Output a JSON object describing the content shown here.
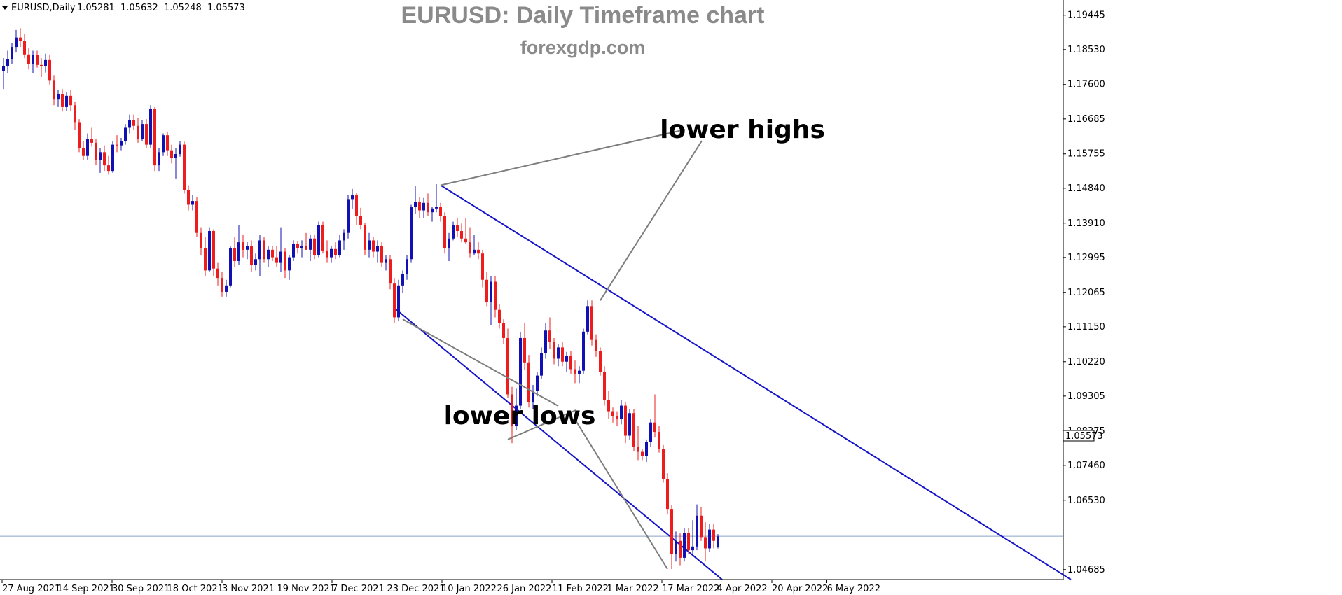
{
  "chart_data": {
    "type": "candlestick",
    "symbol_label": "EURUSD,Daily",
    "ohlc_header": [
      "1.05281",
      "1.05632",
      "1.05248",
      "1.05573"
    ],
    "title": "EURUSD: Daily Timeframe chart",
    "subtitle": "forexgdp.com",
    "y_ticks": [
      "1.19445",
      "1.18530",
      "1.17600",
      "1.16685",
      "1.15755",
      "1.14840",
      "1.13910",
      "1.12995",
      "1.12065",
      "1.11150",
      "1.10220",
      "1.09305",
      "1.08375",
      "1.07460",
      "1.06530",
      "1.04685"
    ],
    "x_ticks": [
      "27 Aug 2021",
      "14 Sep 2021",
      "30 Sep 2021",
      "18 Oct 2021",
      "3 Nov 2021",
      "19 Nov 2021",
      "7 Dec 2021",
      "23 Dec 2021",
      "10 Jan 2022",
      "26 Jan 2022",
      "11 Feb 2022",
      "1 Mar 2022",
      "17 Mar 2022",
      "4 Apr 2022",
      "20 Apr 2022",
      "6 May 2022"
    ],
    "ylim": [
      1.0442,
      1.1985
    ],
    "current_price": "1.05573",
    "current_value": 1.05573,
    "colors": {
      "bull": "#1010b4",
      "bear": "#ee1c1c",
      "channel": "#1414c8",
      "pointer": "#7d7d7d",
      "price_line": "#8aa0c6"
    },
    "candles": [
      [
        1.1795,
        1.183,
        1.1748,
        1.1808
      ],
      [
        1.1808,
        1.185,
        1.179,
        1.1828
      ],
      [
        1.1828,
        1.187,
        1.1815,
        1.186
      ],
      [
        1.186,
        1.1905,
        1.1845,
        1.1885
      ],
      [
        1.1885,
        1.191,
        1.186,
        1.1876
      ],
      [
        1.1876,
        1.1895,
        1.183,
        1.184
      ],
      [
        1.184,
        1.1858,
        1.18,
        1.1815
      ],
      [
        1.1815,
        1.185,
        1.179,
        1.1838
      ],
      [
        1.1838,
        1.185,
        1.1805,
        1.1812
      ],
      [
        1.1812,
        1.183,
        1.178,
        1.1808
      ],
      [
        1.1808,
        1.1842,
        1.1792,
        1.1825
      ],
      [
        1.1825,
        1.184,
        1.176,
        1.177
      ],
      [
        1.177,
        1.1785,
        1.1705,
        1.172
      ],
      [
        1.172,
        1.1745,
        1.17,
        1.1735
      ],
      [
        1.1735,
        1.1748,
        1.1688,
        1.17
      ],
      [
        1.17,
        1.174,
        1.169,
        1.173
      ],
      [
        1.173,
        1.1745,
        1.169,
        1.1705
      ],
      [
        1.1705,
        1.1715,
        1.164,
        1.166
      ],
      [
        1.166,
        1.1668,
        1.158,
        1.159
      ],
      [
        1.159,
        1.161,
        1.156,
        1.157
      ],
      [
        1.157,
        1.163,
        1.156,
        1.1615
      ],
      [
        1.1615,
        1.1645,
        1.1595,
        1.1605
      ],
      [
        1.1605,
        1.1615,
        1.1545,
        1.156
      ],
      [
        1.156,
        1.159,
        1.1525,
        1.158
      ],
      [
        1.158,
        1.1598,
        1.153,
        1.1545
      ],
      [
        1.1545,
        1.157,
        1.152,
        1.153
      ],
      [
        1.153,
        1.161,
        1.1525,
        1.16
      ],
      [
        1.16,
        1.1625,
        1.158,
        1.1598
      ],
      [
        1.1598,
        1.1618,
        1.1585,
        1.161
      ],
      [
        1.161,
        1.1655,
        1.16,
        1.1645
      ],
      [
        1.1645,
        1.168,
        1.163,
        1.1665
      ],
      [
        1.1665,
        1.168,
        1.164,
        1.165
      ],
      [
        1.165,
        1.167,
        1.1605,
        1.1615
      ],
      [
        1.1615,
        1.1665,
        1.161,
        1.1655
      ],
      [
        1.1655,
        1.1668,
        1.159,
        1.16
      ],
      [
        1.16,
        1.1705,
        1.1592,
        1.1695
      ],
      [
        1.1695,
        1.17,
        1.153,
        1.1545
      ],
      [
        1.1545,
        1.159,
        1.153,
        1.158
      ],
      [
        1.158,
        1.163,
        1.157,
        1.1625
      ],
      [
        1.1625,
        1.1635,
        1.157,
        1.1585
      ],
      [
        1.1585,
        1.16,
        1.155,
        1.1565
      ],
      [
        1.1565,
        1.159,
        1.151,
        1.1575
      ],
      [
        1.1575,
        1.161,
        1.1568,
        1.16
      ],
      [
        1.16,
        1.1608,
        1.147,
        1.148
      ],
      [
        1.148,
        1.1492,
        1.1425,
        1.144
      ],
      [
        1.144,
        1.1465,
        1.1425,
        1.145
      ],
      [
        1.145,
        1.146,
        1.1355,
        1.1365
      ],
      [
        1.1365,
        1.138,
        1.1305,
        1.1325
      ],
      [
        1.1325,
        1.1355,
        1.125,
        1.1265
      ],
      [
        1.1265,
        1.138,
        1.126,
        1.137
      ],
      [
        1.137,
        1.1375,
        1.125,
        1.127
      ],
      [
        1.127,
        1.1285,
        1.1225,
        1.1245
      ],
      [
        1.1245,
        1.126,
        1.1195,
        1.1208
      ],
      [
        1.1208,
        1.124,
        1.1195,
        1.1225
      ],
      [
        1.1225,
        1.133,
        1.122,
        1.1325
      ],
      [
        1.1325,
        1.1355,
        1.1275,
        1.129
      ],
      [
        1.129,
        1.1385,
        1.128,
        1.134
      ],
      [
        1.134,
        1.136,
        1.13,
        1.132
      ],
      [
        1.132,
        1.134,
        1.1295,
        1.133
      ],
      [
        1.133,
        1.1345,
        1.126,
        1.128
      ],
      [
        1.128,
        1.131,
        1.1265,
        1.1295
      ],
      [
        1.1295,
        1.136,
        1.125,
        1.1345
      ],
      [
        1.1345,
        1.1355,
        1.1285,
        1.1295
      ],
      [
        1.1295,
        1.133,
        1.1275,
        1.132
      ],
      [
        1.132,
        1.133,
        1.129,
        1.13
      ],
      [
        1.13,
        1.133,
        1.1275,
        1.1285
      ],
      [
        1.1285,
        1.138,
        1.126,
        1.1315
      ],
      [
        1.1315,
        1.1325,
        1.1245,
        1.1265
      ],
      [
        1.1265,
        1.1305,
        1.124,
        1.13
      ],
      [
        1.13,
        1.1345,
        1.129,
        1.1335
      ],
      [
        1.1335,
        1.1342,
        1.131,
        1.1325
      ],
      [
        1.1325,
        1.1345,
        1.13,
        1.133
      ],
      [
        1.133,
        1.1365,
        1.132,
        1.132
      ],
      [
        1.132,
        1.136,
        1.129,
        1.135
      ],
      [
        1.135,
        1.136,
        1.1295,
        1.1305
      ],
      [
        1.1305,
        1.1395,
        1.13,
        1.1385
      ],
      [
        1.1385,
        1.1395,
        1.131,
        1.1318
      ],
      [
        1.1318,
        1.1345,
        1.1285,
        1.13
      ],
      [
        1.13,
        1.133,
        1.1285,
        1.1322
      ],
      [
        1.1322,
        1.134,
        1.1295,
        1.1305
      ],
      [
        1.1305,
        1.136,
        1.13,
        1.1345
      ],
      [
        1.1345,
        1.1375,
        1.132,
        1.1365
      ],
      [
        1.1365,
        1.1465,
        1.135,
        1.1455
      ],
      [
        1.1455,
        1.1482,
        1.143,
        1.1465
      ],
      [
        1.1465,
        1.1472,
        1.1385,
        1.141
      ],
      [
        1.141,
        1.1432,
        1.1375,
        1.1385
      ],
      [
        1.1385,
        1.1392,
        1.1305,
        1.132
      ],
      [
        1.132,
        1.1365,
        1.13,
        1.1345
      ],
      [
        1.1345,
        1.1355,
        1.13,
        1.1315
      ],
      [
        1.1315,
        1.1345,
        1.1285,
        1.133
      ],
      [
        1.133,
        1.134,
        1.1275,
        1.1285
      ],
      [
        1.1285,
        1.1305,
        1.1265,
        1.1295
      ],
      [
        1.1295,
        1.1305,
        1.1215,
        1.123
      ],
      [
        1.123,
        1.1245,
        1.1125,
        1.114
      ],
      [
        1.114,
        1.124,
        1.113,
        1.1225
      ],
      [
        1.1225,
        1.1265,
        1.1205,
        1.1255
      ],
      [
        1.1255,
        1.1305,
        1.124,
        1.1295
      ],
      [
        1.1295,
        1.144,
        1.1285,
        1.1435
      ],
      [
        1.1435,
        1.149,
        1.1415,
        1.1448
      ],
      [
        1.1448,
        1.146,
        1.1405,
        1.1425
      ],
      [
        1.1425,
        1.1458,
        1.1405,
        1.1445
      ],
      [
        1.1445,
        1.147,
        1.141,
        1.142
      ],
      [
        1.142,
        1.1435,
        1.1395,
        1.143
      ],
      [
        1.143,
        1.1495,
        1.142,
        1.1435
      ],
      [
        1.1435,
        1.1445,
        1.1395,
        1.141
      ],
      [
        1.141,
        1.142,
        1.131,
        1.1325
      ],
      [
        1.1325,
        1.1365,
        1.129,
        1.135
      ],
      [
        1.135,
        1.1395,
        1.1345,
        1.1385
      ],
      [
        1.1385,
        1.1405,
        1.1355,
        1.137
      ],
      [
        1.137,
        1.139,
        1.134,
        1.135
      ],
      [
        1.135,
        1.1405,
        1.1335,
        1.134
      ],
      [
        1.134,
        1.138,
        1.13,
        1.131
      ],
      [
        1.131,
        1.136,
        1.1305,
        1.132
      ],
      [
        1.132,
        1.134,
        1.1295,
        1.131
      ],
      [
        1.131,
        1.132,
        1.122,
        1.124
      ],
      [
        1.124,
        1.126,
        1.117,
        1.118
      ],
      [
        1.118,
        1.125,
        1.112,
        1.1235
      ],
      [
        1.1235,
        1.125,
        1.114,
        1.116
      ],
      [
        1.116,
        1.1175,
        1.111,
        1.1125
      ],
      [
        1.1125,
        1.1135,
        1.107,
        1.1085
      ],
      [
        1.1085,
        1.111,
        1.0925,
        1.0935
      ],
      [
        1.0935,
        1.0955,
        1.0805,
        1.085
      ],
      [
        1.085,
        1.095,
        1.084,
        1.0905
      ],
      [
        1.0905,
        1.11,
        1.0895,
        1.1085
      ],
      [
        1.1085,
        1.1125,
        1.1,
        1.102
      ],
      [
        1.102,
        1.104,
        1.09,
        1.0915
      ],
      [
        1.0915,
        1.096,
        1.0895,
        1.0945
      ],
      [
        1.0945,
        1.0995,
        1.093,
        1.0985
      ],
      [
        1.0985,
        1.106,
        1.0975,
        1.1045
      ],
      [
        1.1045,
        1.1125,
        1.103,
        1.1105
      ],
      [
        1.1105,
        1.114,
        1.1055,
        1.1075
      ],
      [
        1.1075,
        1.1085,
        1.1015,
        1.103
      ],
      [
        1.103,
        1.107,
        1.101,
        1.106
      ],
      [
        1.106,
        1.1075,
        1.101,
        1.1022
      ],
      [
        1.1022,
        1.1048,
        1.0995,
        1.1038
      ],
      [
        1.1038,
        1.105,
        1.099,
        1.1002
      ],
      [
        1.1002,
        1.1025,
        1.0965,
        1.099
      ],
      [
        1.099,
        1.101,
        1.0965,
        1.0998
      ],
      [
        1.0998,
        1.111,
        1.099,
        1.1102
      ],
      [
        1.1102,
        1.1185,
        1.1095,
        1.117
      ],
      [
        1.117,
        1.1185,
        1.1065,
        1.108
      ],
      [
        1.108,
        1.1095,
        1.1035,
        1.105
      ],
      [
        1.105,
        1.106,
        1.0985,
        1.0995
      ],
      [
        1.0995,
        1.101,
        1.0905,
        1.092
      ],
      [
        1.092,
        1.0945,
        1.087,
        1.089
      ],
      [
        1.089,
        1.09,
        1.086,
        1.0878
      ],
      [
        1.0878,
        1.089,
        1.085,
        1.087
      ],
      [
        1.087,
        1.092,
        1.0855,
        1.0905
      ],
      [
        1.0905,
        1.0915,
        1.0805,
        1.0825
      ],
      [
        1.0825,
        1.0895,
        1.0815,
        1.0885
      ],
      [
        1.0885,
        1.0895,
        1.0785,
        1.0795
      ],
      [
        1.0795,
        1.085,
        1.076,
        1.0782
      ],
      [
        1.0782,
        1.079,
        1.076,
        1.077
      ],
      [
        1.077,
        1.0815,
        1.0755,
        1.0808
      ],
      [
        1.0808,
        1.087,
        1.0795,
        1.086
      ],
      [
        1.086,
        1.0935,
        1.082,
        1.0835
      ],
      [
        1.0835,
        1.085,
        1.078,
        1.079
      ],
      [
        1.079,
        1.08,
        1.07,
        1.071
      ],
      [
        1.071,
        1.0725,
        1.0615,
        1.063
      ],
      [
        1.063,
        1.064,
        1.047,
        1.051
      ],
      [
        1.051,
        1.057,
        1.049,
        1.0545
      ],
      [
        1.0545,
        1.0565,
        1.048,
        1.05
      ],
      [
        1.05,
        1.058,
        1.049,
        1.0565
      ],
      [
        1.0565,
        1.058,
        1.051,
        1.052
      ],
      [
        1.052,
        1.06,
        1.0505,
        1.053
      ],
      [
        1.053,
        1.0642,
        1.052,
        1.0612
      ],
      [
        1.0612,
        1.0635,
        1.0545,
        1.0555
      ],
      [
        1.0555,
        1.0595,
        1.049,
        1.0525
      ],
      [
        1.0525,
        1.059,
        1.0515,
        1.0575
      ],
      [
        1.0575,
        1.059,
        1.0525,
        1.0545
      ],
      [
        1.0528,
        1.0563,
        1.0525,
        1.0557
      ]
    ],
    "channel_upper": {
      "from": {
        "candle": 104,
        "price": 1.1492
      },
      "to": {
        "candle": 254,
        "price": 1.0442
      }
    },
    "channel_lower": {
      "from": {
        "candle": 93,
        "price": 1.1165
      },
      "to": {
        "candle": 171,
        "price": 1.0442
      }
    },
    "annotations": [
      {
        "text": "lower highs",
        "points": [
          {
            "candle": 104,
            "price": 1.1492
          },
          {
            "candle": 142,
            "price": 1.1185
          }
        ]
      },
      {
        "text": "lower lows",
        "points": [
          {
            "candle": 95,
            "price": 1.1135
          },
          {
            "candle": 120,
            "price": 1.0815
          },
          {
            "candle": 158,
            "price": 1.047
          }
        ]
      }
    ]
  }
}
